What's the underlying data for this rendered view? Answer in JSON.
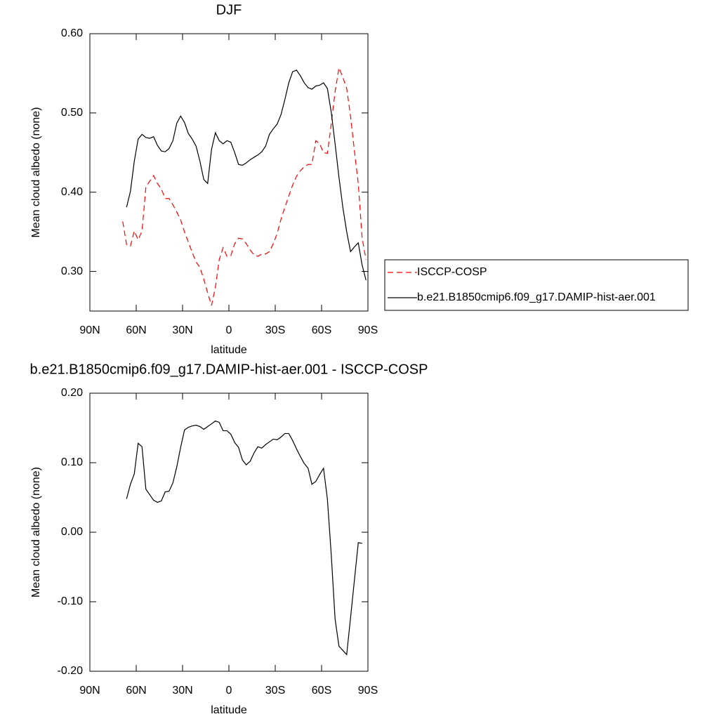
{
  "chart_data": [
    {
      "type": "line",
      "title": "DJF",
      "x_label": "latitude",
      "y_label": "Mean cloud albedo (none)",
      "x": [
        68.75,
        66.25,
        63.75,
        61.25,
        58.75,
        56.25,
        53.75,
        51.25,
        48.75,
        46.25,
        43.75,
        41.25,
        38.75,
        36.25,
        33.75,
        31.25,
        28.75,
        26.25,
        23.75,
        21.25,
        18.75,
        16.25,
        13.75,
        11.25,
        8.75,
        6.25,
        3.75,
        1.25,
        -1.25,
        -3.75,
        -6.25,
        -8.75,
        -11.25,
        -13.75,
        -16.25,
        -18.75,
        -21.25,
        -23.75,
        -26.25,
        -28.75,
        -31.25,
        -33.75,
        -36.25,
        -38.75,
        -41.25,
        -43.75,
        -46.25,
        -48.75,
        -51.25,
        -53.75,
        -56.25,
        -58.75,
        -61.25,
        -63.75,
        -66.25,
        -68.75,
        -71.25,
        -73.75,
        -76.25,
        -78.75,
        -81.25,
        -83.75,
        -86.25,
        -88.75
      ],
      "xlim": [
        90,
        -90
      ],
      "xticks": [
        {
          "value": 90,
          "label": "90N"
        },
        {
          "value": 60,
          "label": "60N"
        },
        {
          "value": 30,
          "label": "30N"
        },
        0,
        {
          "value": -30,
          "label": "30S"
        },
        {
          "value": -60,
          "label": "60S"
        },
        {
          "value": -90,
          "label": "90S"
        }
      ],
      "ylim": [
        0.25,
        0.6
      ],
      "yticks": [
        {
          "value": 0.3,
          "label": "0.30"
        },
        {
          "value": 0.4,
          "label": "0.40"
        },
        {
          "value": 0.5,
          "label": "0.50"
        },
        {
          "value": 0.6,
          "label": "0.60"
        }
      ],
      "legend": "right",
      "series": [
        {
          "name": "ISCCP-COSP",
          "color": "#ff0000",
          "line_style": "dashed",
          "values": [
            0.363,
            0.334,
            0.332,
            0.351,
            0.34,
            0.351,
            0.406,
            0.414,
            0.421,
            0.411,
            0.404,
            0.392,
            0.392,
            0.384,
            0.375,
            0.365,
            0.35,
            0.337,
            0.324,
            0.312,
            0.305,
            0.29,
            0.273,
            0.257,
            0.28,
            0.315,
            0.33,
            0.319,
            0.32,
            0.335,
            0.342,
            0.341,
            0.335,
            0.327,
            0.321,
            0.319,
            0.322,
            0.322,
            0.325,
            0.335,
            0.348,
            0.366,
            0.381,
            0.395,
            0.409,
            0.42,
            0.427,
            0.432,
            0.435,
            0.435,
            0.465,
            0.461,
            0.45,
            0.449,
            0.486,
            0.527,
            0.557,
            0.545,
            0.531,
            0.496,
            0.452,
            0.411,
            0.342,
            0.315
          ]
        },
        {
          "name": "b.e21.B1850cmip6.f09_g17.DAMIP-hist-aer.001",
          "color": "#000000",
          "line_style": "solid",
          "values": [
            null,
            0.381,
            0.401,
            0.439,
            0.467,
            0.473,
            0.469,
            0.468,
            0.47,
            0.459,
            0.452,
            0.451,
            0.455,
            0.465,
            0.487,
            0.496,
            0.488,
            0.474,
            0.467,
            0.458,
            0.439,
            0.416,
            0.411,
            0.454,
            0.475,
            0.465,
            0.461,
            0.465,
            0.463,
            0.45,
            0.435,
            0.434,
            0.437,
            0.441,
            0.444,
            0.447,
            0.451,
            0.458,
            0.473,
            0.48,
            0.486,
            0.498,
            0.517,
            0.538,
            0.552,
            0.554,
            0.547,
            0.538,
            0.532,
            0.53,
            0.534,
            0.535,
            0.538,
            0.531,
            0.501,
            0.461,
            0.419,
            0.381,
            0.35,
            0.325,
            0.331,
            0.336,
            0.308,
            0.289
          ]
        }
      ]
    },
    {
      "type": "line",
      "title": "b.e21.B1850cmip6.f09_g17.DAMIP-hist-aer.001 - ISCCP-COSP",
      "x_label": "latitude",
      "y_label": "Mean cloud albedo (none)",
      "x": [
        68.75,
        66.25,
        63.75,
        61.25,
        58.75,
        56.25,
        53.75,
        51.25,
        48.75,
        46.25,
        43.75,
        41.25,
        38.75,
        36.25,
        33.75,
        31.25,
        28.75,
        26.25,
        23.75,
        21.25,
        18.75,
        16.25,
        13.75,
        11.25,
        8.75,
        6.25,
        3.75,
        1.25,
        -1.25,
        -3.75,
        -6.25,
        -8.75,
        -11.25,
        -13.75,
        -16.25,
        -18.75,
        -21.25,
        -23.75,
        -26.25,
        -28.75,
        -31.25,
        -33.75,
        -36.25,
        -38.75,
        -41.25,
        -43.75,
        -46.25,
        -48.75,
        -51.25,
        -53.75,
        -56.25,
        -58.75,
        -61.25,
        -63.75,
        -66.25,
        -68.75,
        -71.25,
        -73.75,
        -76.25,
        -78.75,
        -81.25,
        -83.75,
        -86.25,
        -88.75
      ],
      "xlim": [
        90,
        -90
      ],
      "xticks": [
        {
          "value": 90,
          "label": "90N"
        },
        {
          "value": 60,
          "label": "60N"
        },
        {
          "value": 30,
          "label": "30N"
        },
        0,
        {
          "value": -30,
          "label": "30S"
        },
        {
          "value": -60,
          "label": "60S"
        },
        {
          "value": -90,
          "label": "90S"
        }
      ],
      "ylim": [
        -0.2,
        0.2
      ],
      "yticks": [
        {
          "value": -0.2,
          "label": "-0.20"
        },
        {
          "value": -0.1,
          "label": "-0.10"
        },
        {
          "value": 0,
          "label": "0.00"
        },
        {
          "value": 0.1,
          "label": "0.10"
        },
        {
          "value": 0.2,
          "label": "0.20"
        }
      ],
      "color": "#000000",
      "line_style": "solid",
      "values": [
        null,
        0.048,
        0.069,
        0.084,
        0.128,
        0.123,
        0.062,
        0.054,
        0.046,
        0.043,
        0.045,
        0.058,
        0.059,
        0.071,
        0.094,
        0.122,
        0.147,
        0.151,
        0.153,
        0.154,
        0.152,
        0.148,
        0.152,
        0.156,
        0.16,
        0.158,
        0.146,
        0.146,
        0.141,
        0.129,
        0.122,
        0.104,
        0.097,
        0.102,
        0.114,
        0.123,
        0.121,
        0.126,
        0.13,
        0.134,
        0.133,
        0.137,
        0.142,
        0.142,
        0.132,
        0.12,
        0.109,
        0.099,
        0.092,
        0.069,
        0.073,
        0.083,
        0.092,
        0.048,
        -0.032,
        -0.125,
        -0.164,
        -0.17,
        -0.176,
        -0.123,
        -0.069,
        -0.015,
        -0.016,
        null
      ]
    }
  ]
}
